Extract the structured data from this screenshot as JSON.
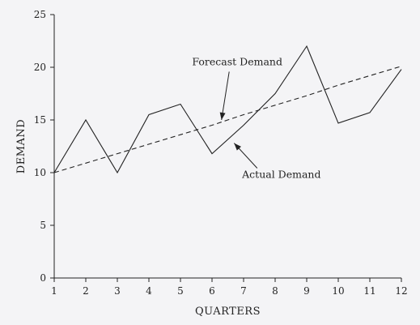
{
  "chart_data": {
    "type": "line",
    "title": "",
    "xlabel": "QUARTERS",
    "ylabel": "DEMAND",
    "x": [
      1,
      2,
      3,
      4,
      5,
      6,
      7,
      8,
      9,
      10,
      11,
      12
    ],
    "xlim": [
      1,
      12
    ],
    "ylim": [
      0,
      25
    ],
    "x_ticks": [
      "1",
      "2",
      "3",
      "4",
      "5",
      "6",
      "7",
      "8",
      "9",
      "10",
      "11",
      "12"
    ],
    "y_ticks": [
      "0",
      "5",
      "10",
      "15",
      "20",
      "25"
    ],
    "grid": false,
    "series": [
      {
        "name": "Actual Demand",
        "style": "solid",
        "values": [
          10,
          15,
          10,
          15.5,
          16.5,
          11.8,
          14.5,
          17.5,
          22,
          14.7,
          15.7,
          19.8
        ]
      },
      {
        "name": "Forecast Demand",
        "style": "dashed",
        "values": [
          10,
          10.9,
          11.8,
          12.7,
          13.6,
          14.5,
          15.5,
          16.4,
          17.3,
          18.3,
          19.2,
          20.1
        ]
      }
    ],
    "annotations": [
      {
        "text": "Forecast Demand",
        "points_to_series": "Forecast Demand",
        "label_at": [
          6.8,
          20.2
        ],
        "arrow_to": [
          6.3,
          15.0
        ]
      },
      {
        "text": "Actual Demand",
        "points_to_series": "Actual Demand",
        "label_at": [
          8.2,
          9.5
        ],
        "arrow_to": [
          6.7,
          12.8
        ]
      }
    ]
  }
}
